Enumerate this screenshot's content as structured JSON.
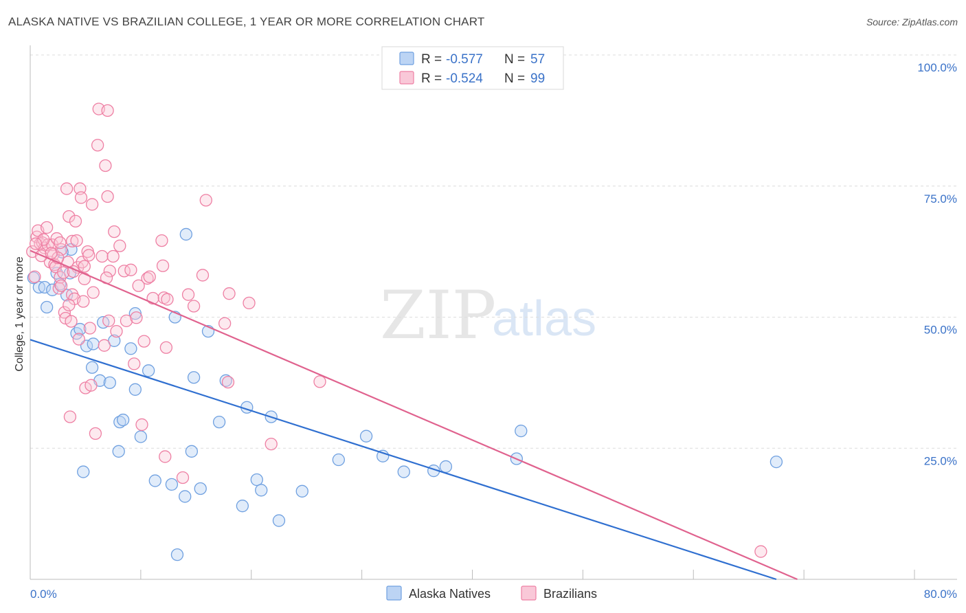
{
  "header": {
    "title": "ALASKA NATIVE VS BRAZILIAN COLLEGE, 1 YEAR OR MORE CORRELATION CHART",
    "source": "Source: ZipAtlas.com"
  },
  "stats": [
    {
      "r_label": "R = ",
      "r": "-0.577",
      "n_label": "N = ",
      "n": "57",
      "color": "#6fa0e0"
    },
    {
      "r_label": "R = ",
      "r": "-0.524",
      "n_label": "N = ",
      "n": "99",
      "color": "#ee7fa3"
    }
  ],
  "watermark": {
    "zip": "ZIP",
    "atlas": "atlas"
  },
  "chart_data": {
    "type": "scatter",
    "title": "ALASKA NATIVE VS BRAZILIAN COLLEGE, 1 YEAR OR MORE CORRELATION CHART",
    "xlabel": "",
    "ylabel": "College, 1 year or more",
    "xlim": [
      0,
      80
    ],
    "ylim": [
      0,
      100
    ],
    "x_tick_labels": [
      "0.0%",
      "80.0%"
    ],
    "y_ticks": [
      25,
      50,
      75,
      100
    ],
    "y_tick_labels": [
      "25.0%",
      "50.0%",
      "75.0%",
      "100.0%"
    ],
    "grid": true,
    "legend": [
      "Alaska Natives",
      "Brazilians"
    ],
    "series": [
      {
        "name": "Alaska Natives",
        "color": "#6fa0e0",
        "line_color": "#2f6fd0",
        "trend": {
          "x": [
            0,
            67.5
          ],
          "y": [
            45.7,
            0
          ]
        },
        "points": [
          [
            0.8,
            55.7
          ],
          [
            1.3,
            55.7
          ],
          [
            1.5,
            51.9
          ],
          [
            2.0,
            55.2
          ],
          [
            2.4,
            58.4
          ],
          [
            2.7,
            56.3
          ],
          [
            3.3,
            54.2
          ],
          [
            3.6,
            58.4
          ],
          [
            3.7,
            62.9
          ],
          [
            4.2,
            46.9
          ],
          [
            4.5,
            47.7
          ],
          [
            4.8,
            20.5
          ],
          [
            5.1,
            44.5
          ],
          [
            5.6,
            40.4
          ],
          [
            5.7,
            44.9
          ],
          [
            6.3,
            37.9
          ],
          [
            6.6,
            49.0
          ],
          [
            7.2,
            37.5
          ],
          [
            7.6,
            45.5
          ],
          [
            8.1,
            30.0
          ],
          [
            8.4,
            30.4
          ],
          [
            8.0,
            24.4
          ],
          [
            9.1,
            44.0
          ],
          [
            9.5,
            36.2
          ],
          [
            9.5,
            50.7
          ],
          [
            10.7,
            39.8
          ],
          [
            10.0,
            27.2
          ],
          [
            11.3,
            18.8
          ],
          [
            12.8,
            18.1
          ],
          [
            13.1,
            50.0
          ],
          [
            13.3,
            4.7
          ],
          [
            14.0,
            15.8
          ],
          [
            14.1,
            65.8
          ],
          [
            14.6,
            24.4
          ],
          [
            14.8,
            38.5
          ],
          [
            15.4,
            17.3
          ],
          [
            16.1,
            47.3
          ],
          [
            17.1,
            30.0
          ],
          [
            17.7,
            37.9
          ],
          [
            19.2,
            14.0
          ],
          [
            19.6,
            32.8
          ],
          [
            20.5,
            19.0
          ],
          [
            20.9,
            17.0
          ],
          [
            21.8,
            31.0
          ],
          [
            22.5,
            11.2
          ],
          [
            24.6,
            16.8
          ],
          [
            27.9,
            22.8
          ],
          [
            30.4,
            27.3
          ],
          [
            31.9,
            23.5
          ],
          [
            33.8,
            20.5
          ],
          [
            36.5,
            20.7
          ],
          [
            37.6,
            21.5
          ],
          [
            44.0,
            23.0
          ],
          [
            44.4,
            28.3
          ],
          [
            67.5,
            22.4
          ],
          [
            2.9,
            62.4
          ],
          [
            0.3,
            57.5
          ]
        ]
      },
      {
        "name": "Brazilians",
        "color": "#ee7fa3",
        "line_color": "#e0628e",
        "trend": {
          "x": [
            0,
            69.4
          ],
          "y": [
            62.7,
            0
          ]
        },
        "points": [
          [
            0.2,
            62.5
          ],
          [
            0.6,
            65.3
          ],
          [
            0.7,
            66.5
          ],
          [
            0.9,
            64.0
          ],
          [
            1.1,
            64.2
          ],
          [
            1.3,
            63.2
          ],
          [
            1.5,
            67.1
          ],
          [
            1.6,
            63.8
          ],
          [
            1.8,
            60.5
          ],
          [
            2.0,
            63.8
          ],
          [
            2.1,
            62.0
          ],
          [
            2.2,
            60.0
          ],
          [
            2.3,
            59.6
          ],
          [
            2.4,
            65.0
          ],
          [
            2.6,
            55.5
          ],
          [
            2.7,
            57.6
          ],
          [
            2.8,
            62.9
          ],
          [
            2.8,
            56.0
          ],
          [
            3.0,
            58.5
          ],
          [
            3.1,
            50.9
          ],
          [
            3.2,
            49.8
          ],
          [
            3.3,
            74.5
          ],
          [
            3.4,
            60.5
          ],
          [
            3.5,
            69.2
          ],
          [
            3.6,
            31.0
          ],
          [
            3.7,
            49.2
          ],
          [
            3.8,
            64.5
          ],
          [
            3.8,
            54.3
          ],
          [
            4.0,
            53.5
          ],
          [
            4.1,
            68.3
          ],
          [
            4.2,
            64.6
          ],
          [
            4.3,
            59.5
          ],
          [
            4.4,
            45.8
          ],
          [
            4.5,
            74.5
          ],
          [
            4.6,
            72.8
          ],
          [
            4.7,
            60.5
          ],
          [
            4.8,
            53.0
          ],
          [
            4.9,
            59.7
          ],
          [
            5.0,
            36.5
          ],
          [
            5.2,
            62.5
          ],
          [
            5.4,
            47.9
          ],
          [
            5.5,
            37.0
          ],
          [
            5.6,
            71.5
          ],
          [
            5.7,
            54.7
          ],
          [
            5.9,
            27.8
          ],
          [
            6.1,
            82.8
          ],
          [
            6.2,
            89.7
          ],
          [
            6.5,
            61.6
          ],
          [
            6.7,
            44.6
          ],
          [
            6.8,
            78.9
          ],
          [
            7.0,
            73.0
          ],
          [
            7.0,
            89.4
          ],
          [
            7.1,
            49.3
          ],
          [
            7.2,
            58.8
          ],
          [
            7.5,
            61.6
          ],
          [
            7.6,
            66.3
          ],
          [
            7.8,
            47.3
          ],
          [
            8.1,
            63.6
          ],
          [
            8.5,
            58.8
          ],
          [
            8.7,
            49.3
          ],
          [
            9.1,
            59.0
          ],
          [
            9.4,
            41.1
          ],
          [
            9.8,
            56.0
          ],
          [
            10.1,
            29.5
          ],
          [
            10.3,
            45.4
          ],
          [
            10.6,
            57.4
          ],
          [
            10.8,
            57.7
          ],
          [
            11.9,
            64.6
          ],
          [
            12.0,
            59.8
          ],
          [
            12.1,
            53.7
          ],
          [
            12.3,
            44.2
          ],
          [
            13.8,
            19.4
          ],
          [
            14.3,
            54.3
          ],
          [
            14.8,
            52.1
          ],
          [
            15.6,
            58.0
          ],
          [
            15.9,
            72.3
          ],
          [
            17.9,
            37.6
          ],
          [
            17.6,
            48.8
          ],
          [
            18.0,
            54.5
          ],
          [
            19.8,
            52.7
          ],
          [
            21.8,
            25.8
          ],
          [
            26.2,
            37.7
          ],
          [
            66.1,
            5.3
          ],
          [
            1.0,
            61.7
          ],
          [
            1.2,
            64.8
          ],
          [
            2.5,
            61.3
          ],
          [
            3.9,
            58.7
          ],
          [
            4.9,
            57.3
          ],
          [
            5.3,
            61.8
          ],
          [
            6.9,
            57.5
          ],
          [
            9.6,
            49.9
          ],
          [
            11.1,
            53.6
          ],
          [
            12.4,
            53.4
          ],
          [
            0.4,
            57.7
          ],
          [
            1.9,
            62.2
          ],
          [
            3.5,
            52.3
          ],
          [
            0.5,
            64.0
          ],
          [
            2.7,
            64.2
          ],
          [
            12.2,
            23.4
          ]
        ]
      }
    ]
  },
  "legend": {
    "items": [
      {
        "label": "Alaska Natives",
        "color": "#6fa0e0"
      },
      {
        "label": "Brazilians",
        "color": "#ee7fa3"
      }
    ]
  }
}
